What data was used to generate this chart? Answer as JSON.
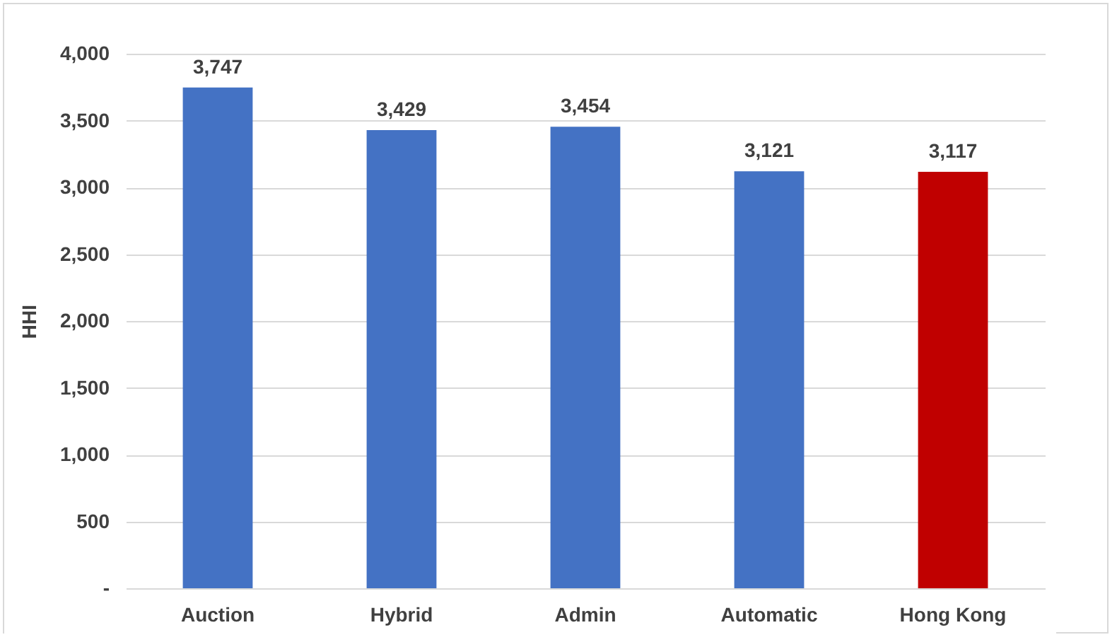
{
  "chart_data": {
    "type": "bar",
    "ylabel": "HHI",
    "categories": [
      "Auction",
      "Hybrid",
      "Admin",
      "Automatic",
      "Hong Kong"
    ],
    "values": [
      3747,
      3429,
      3454,
      3121,
      3117
    ],
    "colors": [
      "#4472c4",
      "#4472c4",
      "#4472c4",
      "#4472c4",
      "#c00000"
    ],
    "value_labels": [
      "3,747",
      "3,429",
      "3,454",
      "3,121",
      "3,117"
    ],
    "ylim": [
      0,
      4000
    ],
    "yticks": [
      {
        "value": 0,
        "label": "-"
      },
      {
        "value": 500,
        "label": "500"
      },
      {
        "value": 1000,
        "label": "1,000"
      },
      {
        "value": 1500,
        "label": "1,500"
      },
      {
        "value": 2000,
        "label": "2,000"
      },
      {
        "value": 2500,
        "label": "2,500"
      },
      {
        "value": 3000,
        "label": "3,000"
      },
      {
        "value": 3500,
        "label": "3,500"
      },
      {
        "value": 4000,
        "label": "4,000"
      }
    ],
    "grid": "y"
  }
}
